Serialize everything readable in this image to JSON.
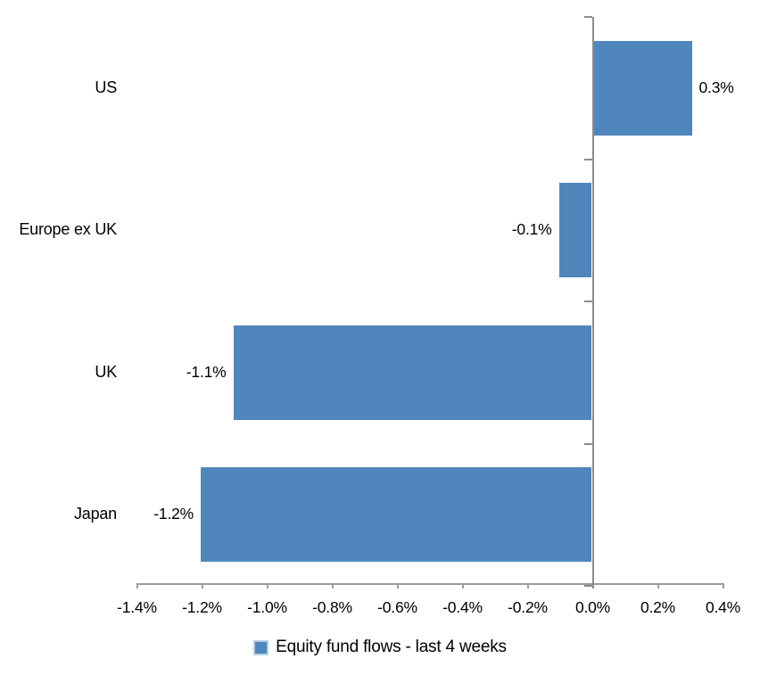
{
  "chart_data": {
    "type": "bar",
    "orientation": "horizontal",
    "title": "",
    "xlabel": "",
    "ylabel": "",
    "categories": [
      "US",
      "Europe ex UK",
      "UK",
      "Japan"
    ],
    "series": [
      {
        "name": "Equity fund flows - last 4 weeks",
        "values": [
          0.3,
          -0.1,
          -1.1,
          -1.2
        ],
        "data_labels": [
          "0.3%",
          "-0.1%",
          "-1.1%",
          "-1.2%"
        ]
      }
    ],
    "xlim": [
      -1.4,
      0.4
    ],
    "x_ticks": [
      -1.4,
      -1.2,
      -1.0,
      -0.8,
      -0.6,
      -0.4,
      -0.2,
      0.0,
      0.2,
      0.4
    ],
    "x_tick_labels": [
      "-1.4%",
      "-1.2%",
      "-1.0%",
      "-0.8%",
      "-0.6%",
      "-0.4%",
      "-0.2%",
      "0.0%",
      "0.2%",
      "0.4%"
    ],
    "grid": false,
    "legend_position": "bottom",
    "colors": {
      "bar": "#4F86BC",
      "legend_marker_border": "#B8CEE4",
      "axis": "#9C9C9C",
      "zero_line": "#8C8C8C",
      "text": "#000000"
    }
  }
}
